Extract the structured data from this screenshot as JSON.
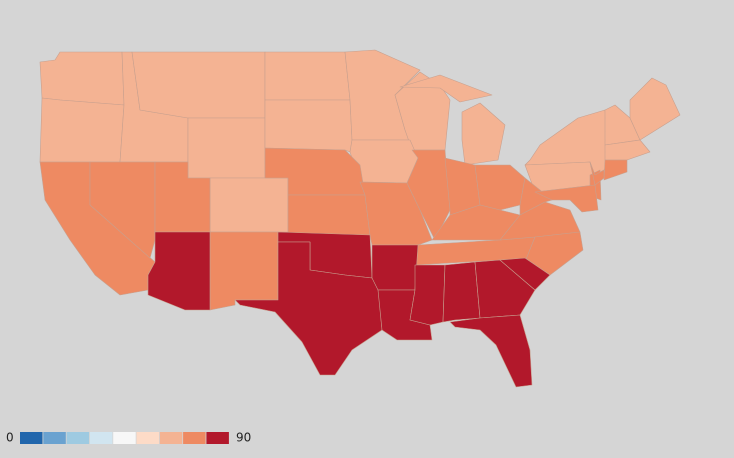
{
  "chart_data": {
    "type": "choropleth",
    "legend": {
      "min": 0,
      "max": 90,
      "colors": [
        "#2166ac",
        "#6aa2d0",
        "#9ecae1",
        "#d1e5f0",
        "#f7f7f7",
        "#fddbc7",
        "#f4b393",
        "#ee8a62",
        "#b2182b"
      ]
    },
    "values": [
      65,
      65,
      65,
      65,
      65,
      65,
      65,
      65,
      65,
      65,
      65,
      65,
      65,
      65,
      65,
      65,
      65,
      65,
      75,
      75,
      75,
      75,
      75,
      75,
      75,
      75,
      75,
      75,
      75,
      75,
      75,
      75,
      75,
      75,
      75,
      75,
      75,
      85,
      85,
      85,
      85,
      85,
      85,
      85,
      85,
      85,
      85
    ]
  }
}
